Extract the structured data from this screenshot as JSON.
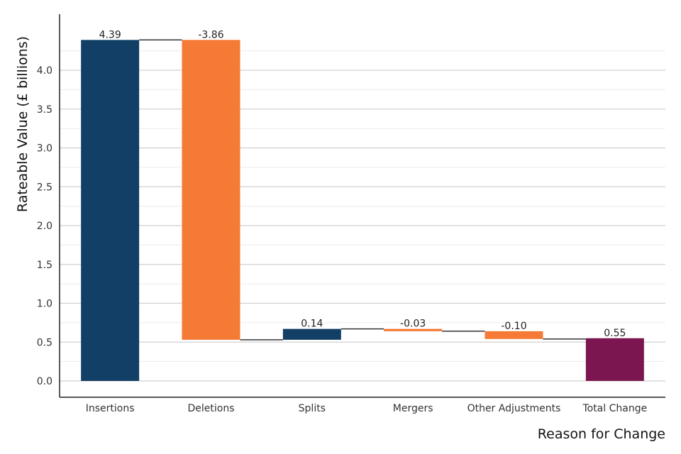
{
  "chart_data": {
    "type": "bar",
    "subtype": "waterfall",
    "title": "",
    "xlabel": "Reason for Change",
    "ylabel": "Rateable Value (£ billions)",
    "categories": [
      "Insertions",
      "Deletions",
      "Splits",
      "Mergers",
      "Other Adjustments",
      "Total Change"
    ],
    "values": [
      4.39,
      -3.86,
      0.14,
      -0.03,
      -0.1,
      0.55
    ],
    "value_labels": [
      "4.39",
      "-3.86",
      "0.14",
      "-0.03",
      "-0.10",
      "0.55"
    ],
    "ylim": [
      -0.2,
      4.75
    ],
    "yticks": [
      "0.0",
      "0.5",
      "1.0",
      "1.5",
      "2.0",
      "2.5",
      "3.0",
      "3.5",
      "4.0"
    ],
    "grid": true,
    "legend": "none",
    "colors": {
      "increase": "#123f66",
      "decrease": "#f47a35",
      "total": "#7b1650",
      "connector": "#333333",
      "grid_major": "#d0d0d0",
      "grid_minor": "#ececec",
      "axis": "#222222"
    }
  }
}
